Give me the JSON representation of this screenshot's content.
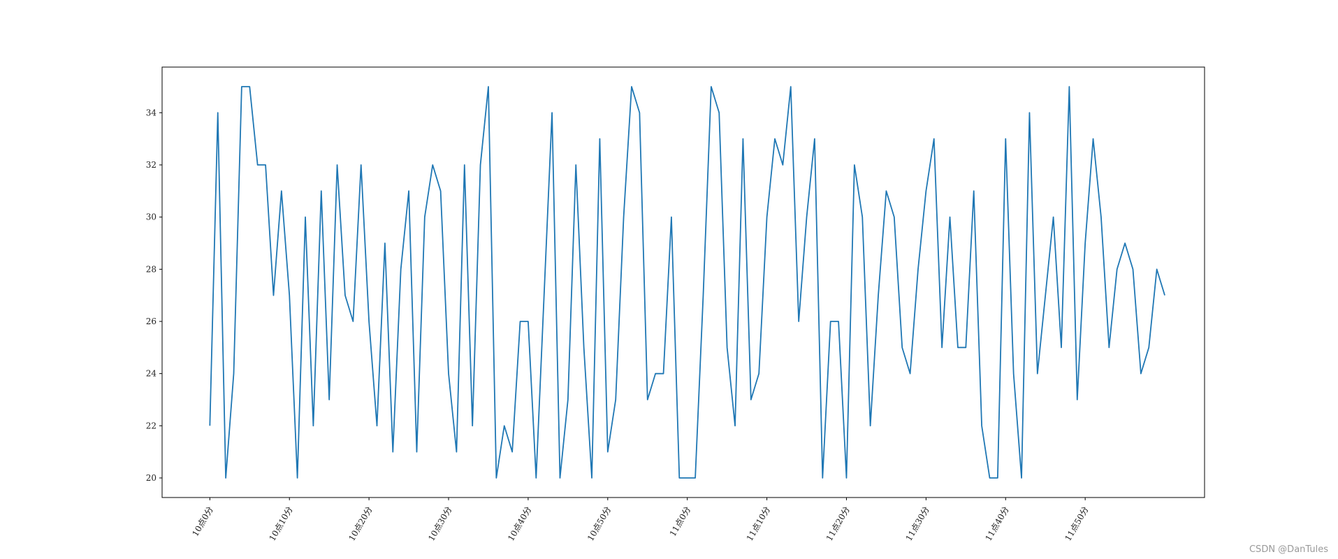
{
  "chart_data": {
    "type": "line",
    "title": "",
    "xlabel": "",
    "ylabel": "",
    "x_tick_labels": [
      "10点0分",
      "10点10分",
      "10点20分",
      "10点30分",
      "10点40分",
      "10点50分",
      "11点0分",
      "11点10分",
      "11点20分",
      "11点30分",
      "11点40分",
      "11点50分"
    ],
    "x_tick_positions": [
      0,
      10,
      20,
      30,
      40,
      50,
      60,
      70,
      80,
      90,
      100,
      110
    ],
    "xlim": [
      -6,
      125
    ],
    "ylim": [
      19.25,
      35.75
    ],
    "y_ticks": [
      20,
      22,
      24,
      26,
      28,
      30,
      32,
      34
    ],
    "grid": false,
    "series": [
      {
        "color": "#1f77b4",
        "x": [
          0,
          1,
          2,
          3,
          4,
          5,
          6,
          7,
          8,
          9,
          10,
          11,
          12,
          13,
          14,
          15,
          16,
          17,
          18,
          19,
          20,
          21,
          22,
          23,
          24,
          25,
          26,
          27,
          28,
          29,
          30,
          31,
          32,
          33,
          34,
          35,
          36,
          37,
          38,
          39,
          40,
          41,
          42,
          43,
          44,
          45,
          46,
          47,
          48,
          49,
          50,
          51,
          52,
          53,
          54,
          55,
          56,
          57,
          58,
          59,
          60,
          61,
          62,
          63,
          64,
          65,
          66,
          67,
          68,
          69,
          70,
          71,
          72,
          73,
          74,
          75,
          76,
          77,
          78,
          79,
          80,
          81,
          82,
          83,
          84,
          85,
          86,
          87,
          88,
          89,
          90,
          91,
          92,
          93,
          94,
          95,
          96,
          97,
          98,
          99,
          100,
          101,
          102,
          103,
          104,
          105,
          106,
          107,
          108,
          109,
          110,
          111,
          112,
          113,
          114,
          115,
          116,
          117,
          118,
          119,
          120
        ],
        "y": [
          22,
          34,
          20,
          24,
          35,
          35,
          32,
          32,
          27,
          31,
          27,
          20,
          30,
          22,
          31,
          23,
          32,
          27,
          26,
          32,
          26,
          22,
          29,
          21,
          28,
          31,
          21,
          30,
          32,
          31,
          24,
          21,
          32,
          22,
          32,
          35,
          20,
          22,
          21,
          26,
          26,
          20,
          27,
          34,
          20,
          23,
          32,
          25,
          20,
          33,
          21,
          23,
          30,
          35,
          34,
          23,
          24,
          24,
          30,
          20,
          20,
          20,
          27,
          35,
          34,
          25,
          22,
          33,
          23,
          24,
          30,
          33,
          32,
          35,
          26,
          30,
          33,
          20,
          26,
          26,
          20,
          32,
          30,
          22,
          27,
          31,
          30,
          25,
          24,
          28,
          31,
          33,
          25,
          30,
          25,
          25,
          31,
          22,
          20,
          20,
          33,
          24,
          20,
          34,
          24,
          27,
          30,
          25,
          35,
          23,
          29,
          33,
          30,
          25,
          28,
          29,
          28,
          24,
          25,
          28,
          27
        ]
      }
    ]
  },
  "watermark": "CSDN @DanTules"
}
